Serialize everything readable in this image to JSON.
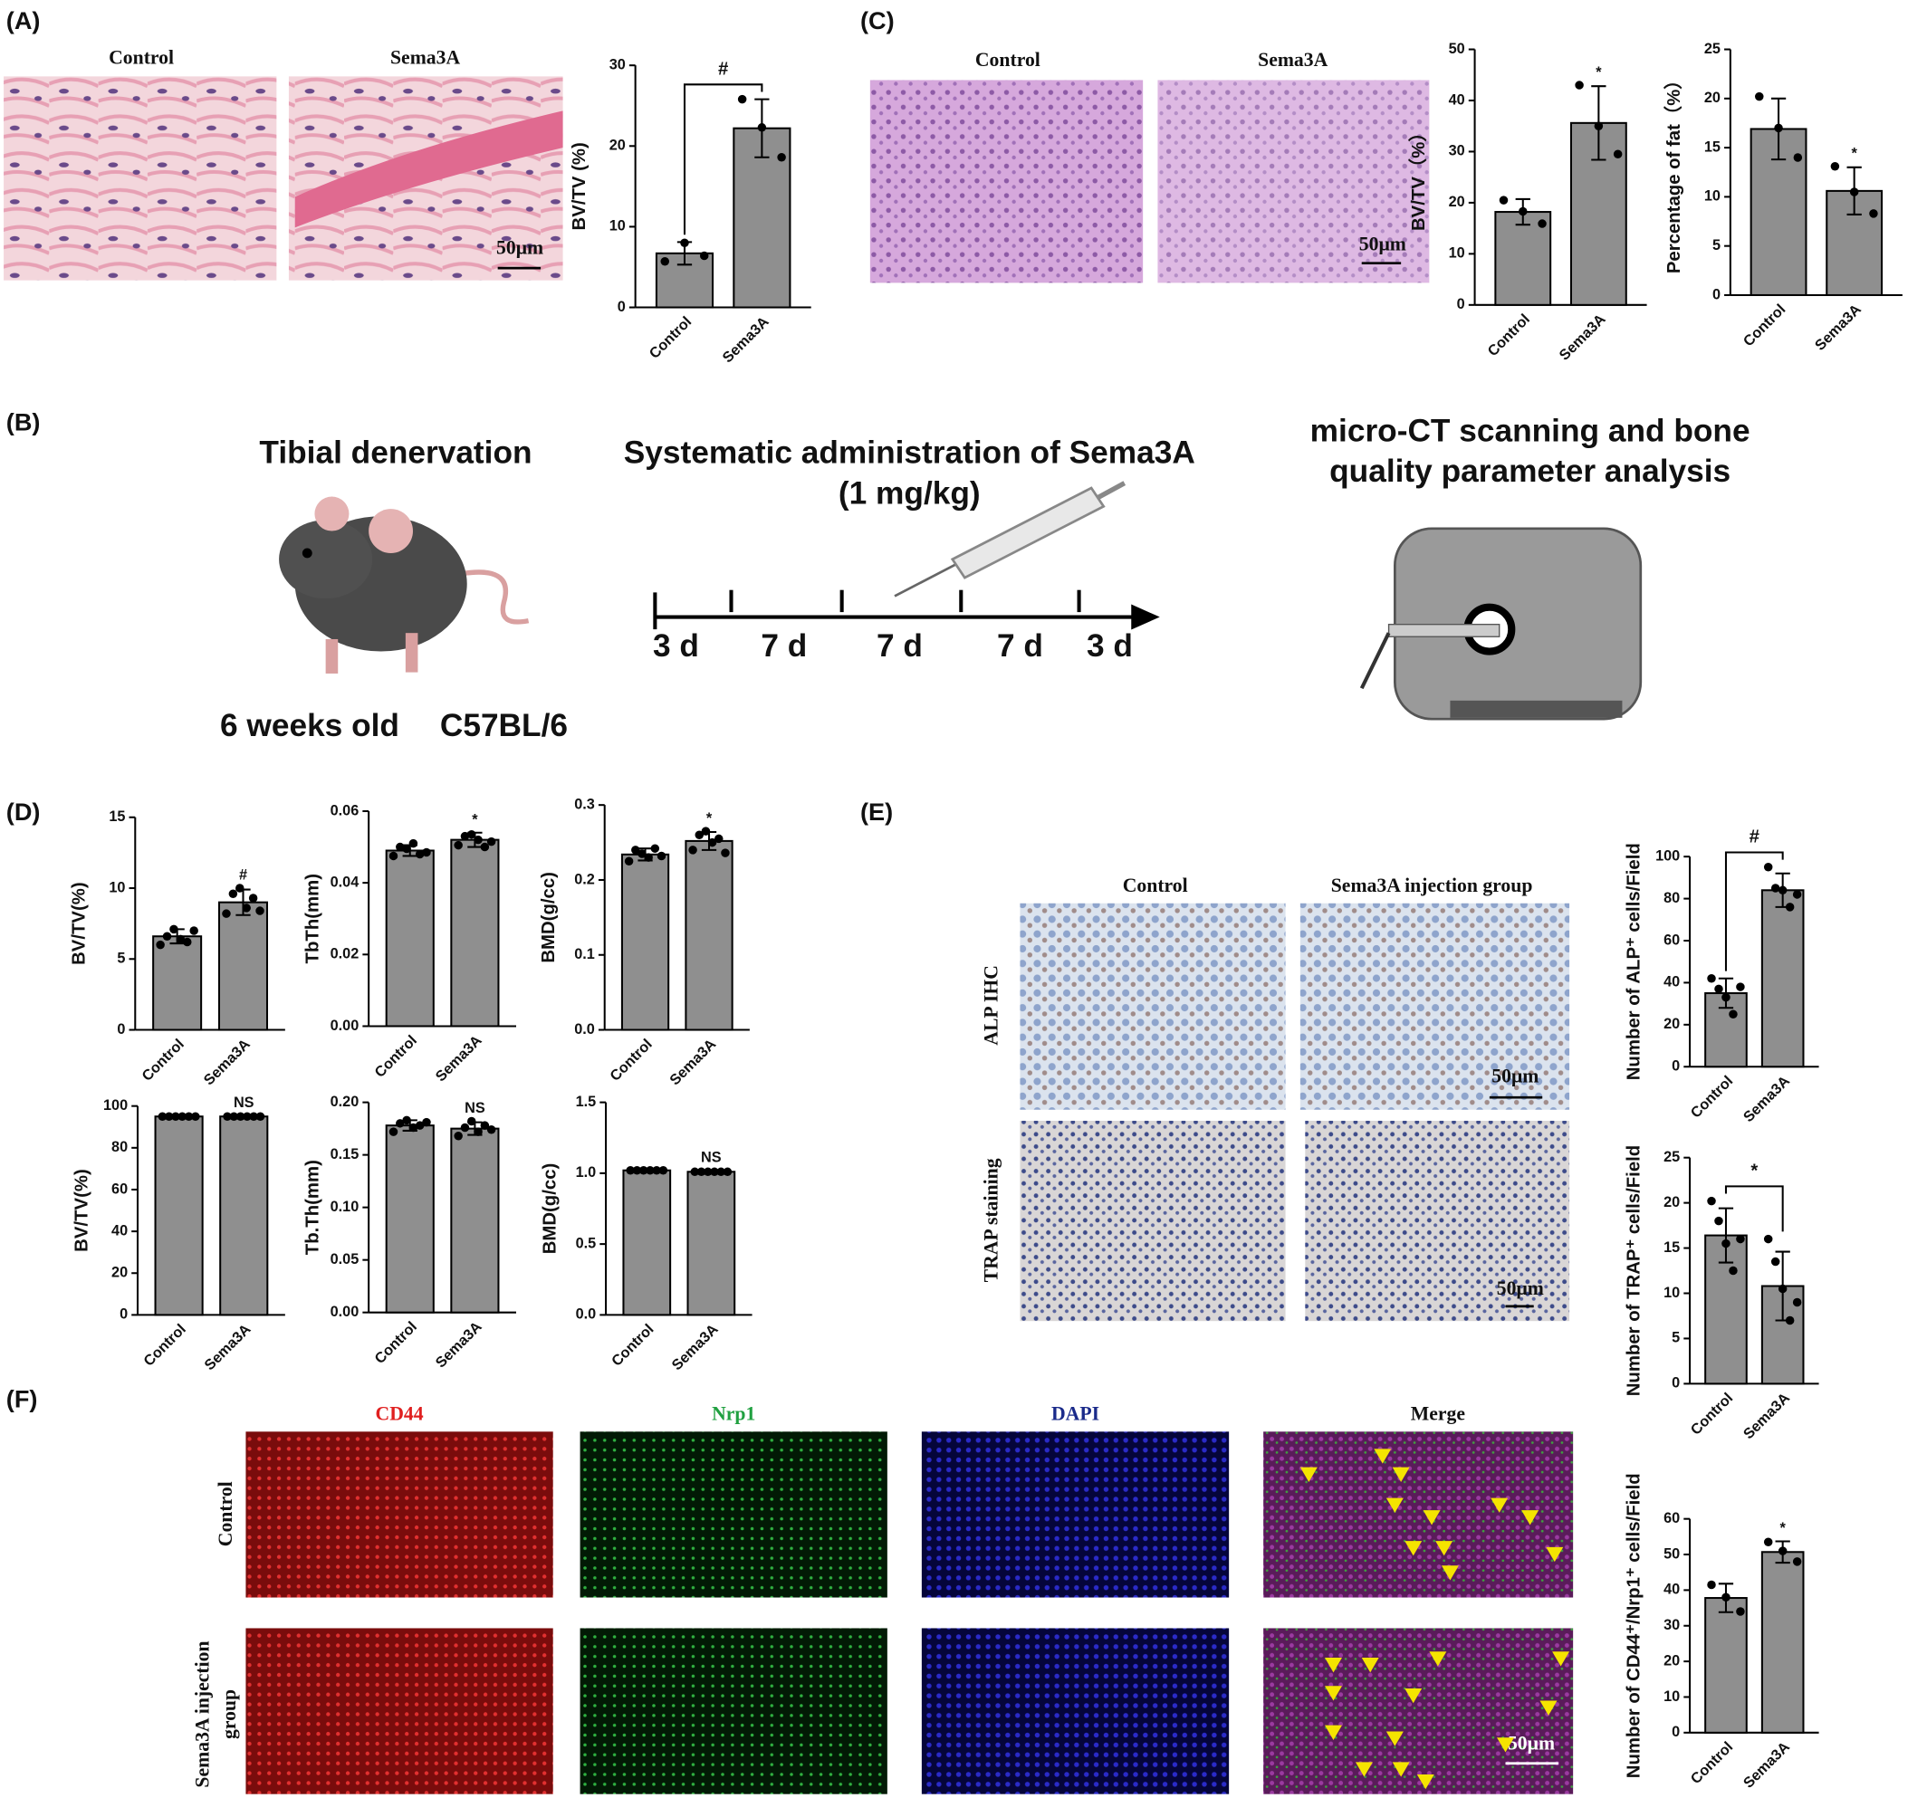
{
  "chart_data": [
    {
      "type": "bar",
      "ylabel": "BV/TV (%)",
      "categories": [
        "Control",
        "Sema3A"
      ],
      "values": [
        6.7,
        22.2
      ],
      "errors": [
        1.4,
        3.6
      ],
      "points": [
        [
          5.7,
          8.0,
          6.4
        ],
        [
          25.8,
          22.3,
          18.6
        ]
      ],
      "annotation": "#",
      "bracket": true,
      "ylim": [
        0,
        30
      ],
      "yticks": [
        0,
        10,
        20,
        30
      ],
      "color": "#8f8f8f"
    },
    {
      "type": "bar",
      "ylabel": "BV/TV（%）",
      "categories": [
        "Control",
        "Sema3A"
      ],
      "values": [
        18.2,
        35.6
      ],
      "errors": [
        2.5,
        7.2
      ],
      "points": [
        [
          20.5,
          18.3,
          15.9
        ],
        [
          43.0,
          35.0,
          29.5
        ]
      ],
      "annotation": "*",
      "bracket": false,
      "ylim": [
        0,
        50
      ],
      "yticks": [
        0,
        10,
        20,
        30,
        40,
        50
      ],
      "color": "#8f8f8f"
    },
    {
      "type": "bar",
      "ylabel": "Percentage of fat（%）",
      "categories": [
        "Control",
        "Sema3A"
      ],
      "values": [
        16.9,
        10.6
      ],
      "errors": [
        3.1,
        2.4
      ],
      "points": [
        [
          20.2,
          17.0,
          14.0
        ],
        [
          13.1,
          10.5,
          8.3
        ]
      ],
      "annotation": "*",
      "bracket": false,
      "ylim": [
        0,
        25
      ],
      "yticks": [
        0,
        5,
        10,
        15,
        20,
        25
      ],
      "color": "#8f8f8f"
    },
    {
      "type": "bar",
      "ylabel": "BV/TV(%)",
      "categories": [
        "Control",
        "Sema3A"
      ],
      "values": [
        6.6,
        9.0
      ],
      "errors": [
        0.5,
        0.9
      ],
      "points": [
        [
          6.0,
          6.6,
          7.1,
          6.4,
          6.2,
          7.0
        ],
        [
          8.2,
          9.6,
          10.0,
          8.6,
          9.3,
          8.4
        ]
      ],
      "annotation": "#",
      "bracket": false,
      "ylim": [
        0,
        15
      ],
      "yticks": [
        0,
        5,
        10,
        15
      ],
      "color": "#8f8f8f"
    },
    {
      "type": "bar",
      "ylabel": "TbTh(mm)",
      "categories": [
        "Control",
        "Sema3A"
      ],
      "values": [
        0.049,
        0.052
      ],
      "errors": [
        0.0015,
        0.002
      ],
      "points": [
        [
          0.0475,
          0.05,
          0.0495,
          0.051,
          0.048,
          0.0485
        ],
        [
          0.0505,
          0.053,
          0.0535,
          0.052,
          0.05,
          0.0515
        ]
      ],
      "annotation": "*",
      "bracket": false,
      "ylim": [
        0,
        0.06
      ],
      "yticks": [
        {
          "value": 0,
          "label": "0.00"
        },
        {
          "value": 0.02,
          "label": "0.02"
        },
        {
          "value": 0.04,
          "label": "0.04"
        },
        {
          "value": 0.06,
          "label": "0.06"
        }
      ],
      "color": "#8f8f8f"
    },
    {
      "type": "bar",
      "ylabel": "BMD(g/cc)",
      "categories": [
        "Control",
        "Sema3A"
      ],
      "values": [
        0.234,
        0.252
      ],
      "errors": [
        0.008,
        0.012
      ],
      "points": [
        [
          0.225,
          0.24,
          0.235,
          0.23,
          0.242,
          0.232
        ],
        [
          0.24,
          0.26,
          0.265,
          0.25,
          0.255,
          0.236
        ]
      ],
      "annotation": "*",
      "bracket": false,
      "ylim": [
        0,
        0.3
      ],
      "yticks": [
        {
          "value": 0,
          "label": "0.0"
        },
        0.1,
        0.2,
        0.3
      ],
      "color": "#8f8f8f"
    },
    {
      "type": "bar",
      "ylabel": "BV/TV(%)",
      "categories": [
        "Control",
        "Sema3A"
      ],
      "values": [
        95,
        95
      ],
      "errors": [
        0.3,
        0.3
      ],
      "points": [
        [
          95,
          95,
          95,
          95,
          95,
          95
        ],
        [
          95,
          95,
          95,
          95,
          95,
          95
        ]
      ],
      "annotation": "NS",
      "bracket": false,
      "ylim": [
        0,
        100
      ],
      "yticks": [
        0,
        20,
        40,
        60,
        80,
        100
      ],
      "color": "#8f8f8f"
    },
    {
      "type": "bar",
      "ylabel": "Tb.Th(mm)",
      "categories": [
        "Control",
        "Sema3A"
      ],
      "values": [
        0.178,
        0.175
      ],
      "errors": [
        0.005,
        0.006
      ],
      "points": [
        [
          0.172,
          0.18,
          0.183,
          0.176,
          0.178,
          0.181
        ],
        [
          0.168,
          0.176,
          0.182,
          0.172,
          0.178,
          0.174
        ]
      ],
      "annotation": "NS",
      "bracket": false,
      "ylim": [
        0,
        0.2
      ],
      "yticks": [
        {
          "value": 0,
          "label": "0.00"
        },
        {
          "value": 0.05,
          "label": "0.05"
        },
        {
          "value": 0.1,
          "label": "0.10"
        },
        {
          "value": 0.15,
          "label": "0.15"
        },
        {
          "value": 0.2,
          "label": "0.20"
        }
      ],
      "color": "#8f8f8f"
    },
    {
      "type": "bar",
      "ylabel": "BMD(g/cc)",
      "categories": [
        "Control",
        "Sema3A"
      ],
      "values": [
        1.02,
        1.01
      ],
      "errors": [
        0.01,
        0.01
      ],
      "points": [
        [
          1.02,
          1.02,
          1.02,
          1.02,
          1.02,
          1.02
        ],
        [
          1.01,
          1.01,
          1.01,
          1.01,
          1.01,
          1.01
        ]
      ],
      "annotation": "NS",
      "bracket": false,
      "ylim": [
        0,
        1.5
      ],
      "yticks": [
        {
          "value": 0,
          "label": "0.0"
        },
        0.5,
        {
          "value": 1,
          "label": "1.0"
        },
        1.5
      ],
      "color": "#8f8f8f"
    },
    {
      "type": "bar",
      "ylabel": "Number of ALP⁺ cells/Field",
      "categories": [
        "Control",
        "Sema3A"
      ],
      "values": [
        35,
        84
      ],
      "errors": [
        7,
        8
      ],
      "points": [
        [
          42,
          37,
          33,
          25,
          38
        ],
        [
          95,
          85,
          84,
          76,
          82
        ]
      ],
      "annotation": "#",
      "bracket": true,
      "ylim": [
        0,
        100
      ],
      "yticks": [
        0,
        20,
        40,
        60,
        80,
        100
      ],
      "color": "#8f8f8f"
    },
    {
      "type": "bar",
      "ylabel": "Number of TRAP⁺ cells/Field",
      "categories": [
        "Control",
        "Sema3A"
      ],
      "values": [
        16.4,
        10.8
      ],
      "errors": [
        3.0,
        3.8
      ],
      "points": [
        [
          20.2,
          18.0,
          15.5,
          12.5,
          16.0
        ],
        [
          16.0,
          13.5,
          10.5,
          7.0,
          9.0
        ]
      ],
      "annotation": "*",
      "bracket": true,
      "ylim": [
        0,
        25
      ],
      "yticks": [
        0,
        5,
        10,
        15,
        20,
        25
      ],
      "color": "#8f8f8f"
    },
    {
      "type": "bar",
      "ylabel": "Number of CD44⁺/Nrp1⁺ cells/Field",
      "categories": [
        "Control",
        "Sema3A"
      ],
      "values": [
        37.8,
        50.7
      ],
      "errors": [
        4.0,
        3.0
      ],
      "points": [
        [
          41.5,
          38.0,
          34.0
        ],
        [
          53.5,
          51.0,
          48.0
        ]
      ],
      "annotation": "*",
      "bracket": false,
      "ylim": [
        0,
        60
      ],
      "yticks": [
        0,
        10,
        20,
        30,
        40,
        50,
        60
      ],
      "color": "#8f8f8f"
    }
  ],
  "figure": {
    "panel_labels": [
      "(A)",
      "(B)",
      "(C)",
      "(D)",
      "(E)",
      "(F)"
    ],
    "a": {
      "images": [
        "Control",
        "Sema3A"
      ],
      "scale": "50μm"
    },
    "c": {
      "images": [
        "Control",
        "Sema3A"
      ],
      "scale": "50μm"
    },
    "b": {
      "step1": "Tibial denervation",
      "age": "6 weeks old",
      "strain": "C57BL/6",
      "step2": [
        "Systematic administration of Sema3A",
        "(1 mg/kg)"
      ],
      "timeline": [
        "3 d",
        "7 d",
        "7 d",
        "7 d",
        "3 d"
      ],
      "step3": [
        "micro-CT scanning and bone",
        "quality parameter analysis"
      ]
    },
    "e": {
      "columns": [
        "Control",
        "Sema3A injection group"
      ],
      "rows": [
        "ALP IHC",
        "TRAP staining"
      ],
      "scales": [
        "50μm",
        "50μm"
      ]
    },
    "f": {
      "columns": [
        "CD44",
        "Nrp1",
        "DAPI",
        "Merge"
      ],
      "rows": [
        [
          "Control"
        ],
        [
          "Sema3A injection",
          "group"
        ]
      ],
      "scale": "50μm"
    }
  }
}
